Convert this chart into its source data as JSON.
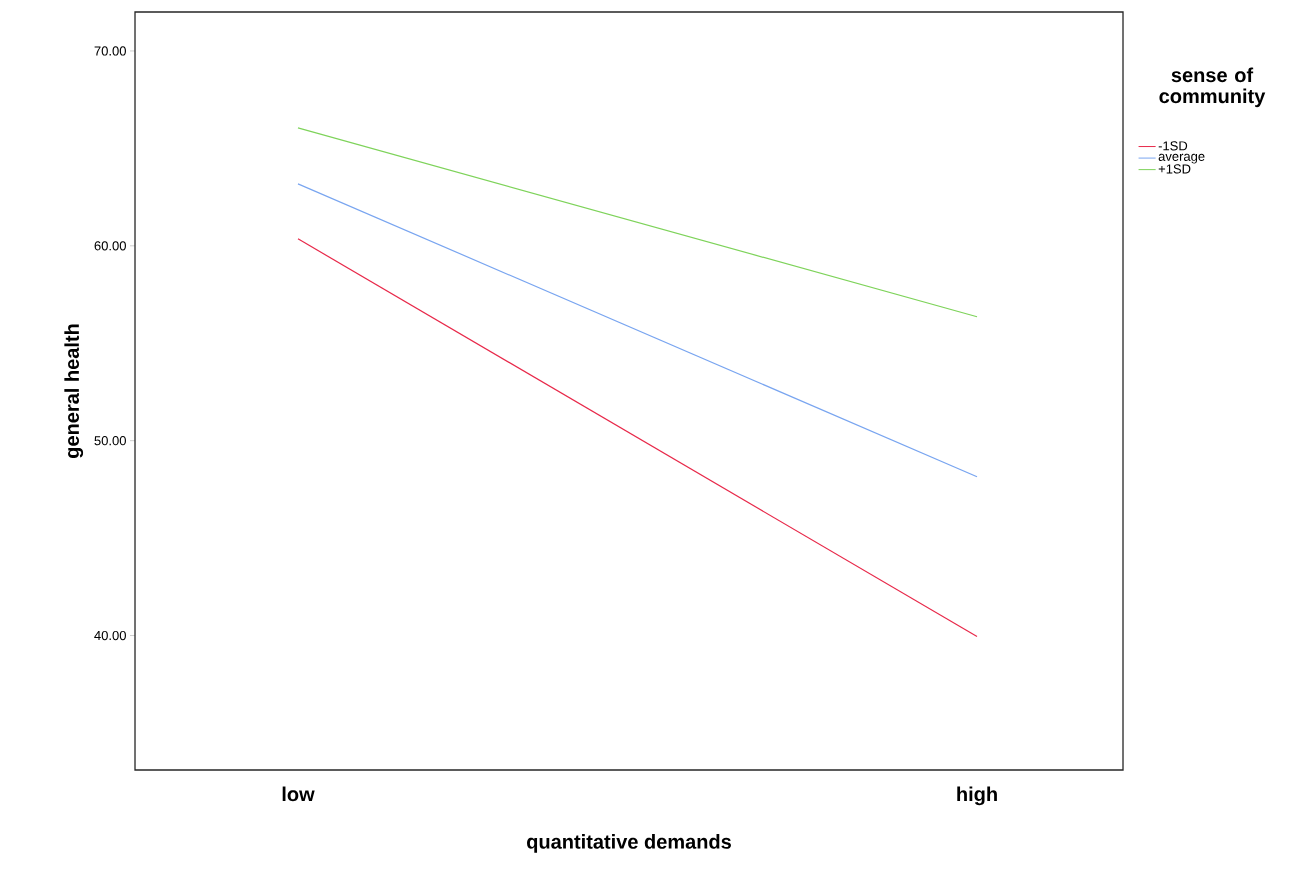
{
  "chart_data": {
    "type": "line",
    "xlabel": "quantitative demands",
    "ylabel": "general health",
    "legend_title": "sense of community",
    "legend": "top right",
    "categories": [
      "low",
      "high"
    ],
    "ylim": [
      33.1,
      72.0
    ],
    "yticks": [
      {
        "value": 40,
        "label": "40.00"
      },
      {
        "value": 50,
        "label": "50.00"
      },
      {
        "value": 60,
        "label": "60.00"
      },
      {
        "value": 70,
        "label": "70.00"
      }
    ],
    "series": [
      {
        "name": "-1SD",
        "color": "#e8294a",
        "values": [
          60.36,
          39.95
        ]
      },
      {
        "name": "average",
        "color": "#79a5f0",
        "values": [
          63.18,
          48.15
        ]
      },
      {
        "name": "+1SD",
        "color": "#7ed35a",
        "values": [
          66.05,
          56.36
        ]
      }
    ]
  }
}
